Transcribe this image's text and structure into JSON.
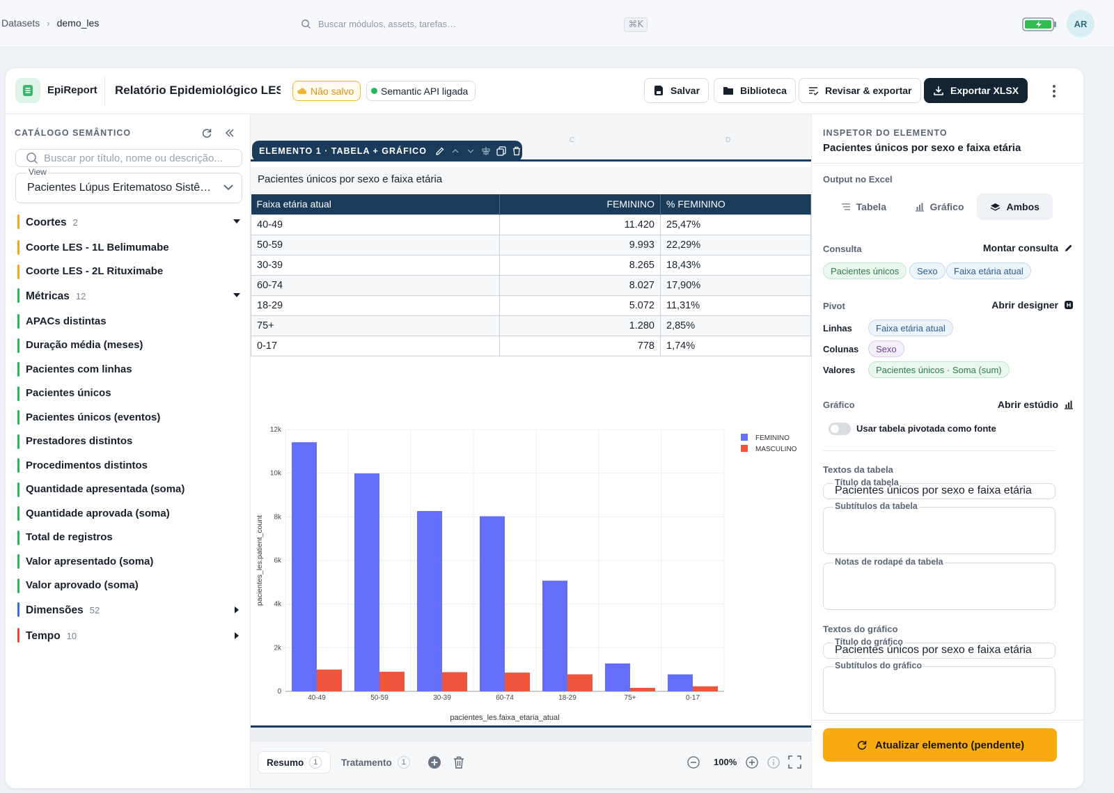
{
  "breadcrumb": [
    "Datasets",
    "demo_les"
  ],
  "search": {
    "placeholder": "Buscar módulos, assets, tarefas…",
    "shortcut": "⌘K"
  },
  "user": {
    "initials": "AR"
  },
  "app": {
    "name": "EpiReport",
    "doc_title": "Relatório Epidemiológico LES",
    "status_unsaved": "Não salvo",
    "status_api": "Semantic API ligada",
    "buttons": {
      "save": "Salvar",
      "library": "Biblioteca",
      "review": "Revisar & exportar",
      "export": "Exportar XLSX"
    }
  },
  "sidebar": {
    "title": "CATÁLOGO SEMÂNTICO",
    "search_placeholder": "Buscar por título, nome ou descrição...",
    "view_label": "View",
    "view_value": "Pacientes Lúpus Eritematoso Sistêmico",
    "groups": [
      {
        "label": "Coortes",
        "count": "2",
        "color": "#f2a41c",
        "expanded": true,
        "items": [
          "Coorte LES - 1L Belimumabe",
          "Coorte LES - 2L Rituximabe"
        ]
      },
      {
        "label": "Métricas",
        "count": "12",
        "color": "#2bb360",
        "expanded": true,
        "items": [
          "APACs distintas",
          "Duração média (meses)",
          "Pacientes com linhas",
          "Pacientes únicos",
          "Pacientes únicos (eventos)",
          "Prestadores distintos",
          "Procedimentos distintos",
          "Quantidade apresentada (soma)",
          "Quantidade aprovada (soma)",
          "Total de registros",
          "Valor apresentado (soma)",
          "Valor aprovado (soma)"
        ]
      },
      {
        "label": "Dimensões",
        "count": "52",
        "color": "#2f72d6",
        "expanded": false,
        "items": []
      },
      {
        "label": "Tempo",
        "count": "10",
        "color": "#e24a3a",
        "expanded": false,
        "items": []
      }
    ]
  },
  "canvas": {
    "element_tag": "ELEMENTO 1 · TABELA + GRÁFICO",
    "ruler": [
      "C",
      "D"
    ],
    "table_caption": "Pacientes únicos por sexo e faixa etária",
    "table": {
      "headers": [
        "Faixa etária atual",
        "FEMININO",
        "% FEMININO"
      ],
      "rows": [
        [
          "40-49",
          "11.420",
          "25,47%"
        ],
        [
          "50-59",
          "9.993",
          "22,29%"
        ],
        [
          "30-39",
          "8.265",
          "18,43%"
        ],
        [
          "60-74",
          "8.027",
          "17,90%"
        ],
        [
          "18-29",
          "5.072",
          "11,31%"
        ],
        [
          "75+",
          "1.280",
          "2,85%"
        ],
        [
          "0-17",
          "778",
          "1,74%"
        ]
      ]
    },
    "tabs": [
      {
        "label": "Resumo",
        "count": "1"
      },
      {
        "label": "Tratamento",
        "count": "1"
      }
    ],
    "zoom": "100%"
  },
  "chart_data": {
    "type": "bar",
    "categories": [
      "40-49",
      "50-59",
      "30-39",
      "60-74",
      "18-29",
      "75+",
      "0-17"
    ],
    "series": [
      {
        "name": "FEMININO",
        "color": "#636efa",
        "values": [
          11420,
          9993,
          8265,
          8027,
          5072,
          1280,
          778
        ]
      },
      {
        "name": "MASCULINO",
        "color": "#ef553b",
        "values": [
          1000,
          900,
          880,
          860,
          780,
          160,
          230
        ]
      }
    ],
    "xlabel": "pacientes_les.faixa_etaria_atual",
    "ylabel": "pacientes_les.patient_count",
    "ylim": [
      0,
      12000
    ],
    "yticks": [
      0,
      2000,
      4000,
      6000,
      8000,
      10000,
      12000
    ],
    "ytick_labels": [
      "0",
      "2k",
      "4k",
      "6k",
      "8k",
      "10k",
      "12k"
    ],
    "legend": "top-right",
    "grid": true
  },
  "inspector": {
    "kicker": "INSPETOR DO ELEMENTO",
    "title": "Pacientes únicos por sexo e faixa etária",
    "output_label": "Output no Excel",
    "output_options": [
      "Tabela",
      "Gráfico",
      "Ambos"
    ],
    "output_selected": "Ambos",
    "query_label": "Consulta",
    "query_action": "Montar consulta",
    "query_chips": [
      "Pacientes únicos",
      "Sexo",
      "Faixa etária atual"
    ],
    "pivot_label": "Pivot",
    "pivot_action": "Abrir designer",
    "pivot_rows_label": "Linhas",
    "pivot_rows": "Faixa etária atual",
    "pivot_cols_label": "Colunas",
    "pivot_cols": "Sexo",
    "pivot_vals_label": "Valores",
    "pivot_vals": "Pacientes únicos · Soma (sum)",
    "chart_label": "Gráfico",
    "chart_action": "Abrir estúdio",
    "toggle_label": "Usar tabela pivotada como fonte",
    "table_texts_label": "Textos da tabela",
    "table_title_label": "Título da tabela",
    "table_title_value": "Pacientes únicos por sexo e faixa etária",
    "table_subtitles_label": "Subtítulos da tabela",
    "table_footnotes_label": "Notas de rodapé da tabela",
    "chart_texts_label": "Textos do gráfico",
    "chart_title_label": "Título do gráfico",
    "chart_title_value": "Pacientes únicos por sexo e faixa etária",
    "chart_subtitles_label": "Subtítulos do gráfico",
    "update_button": "Atualizar elemento (pendente)"
  }
}
